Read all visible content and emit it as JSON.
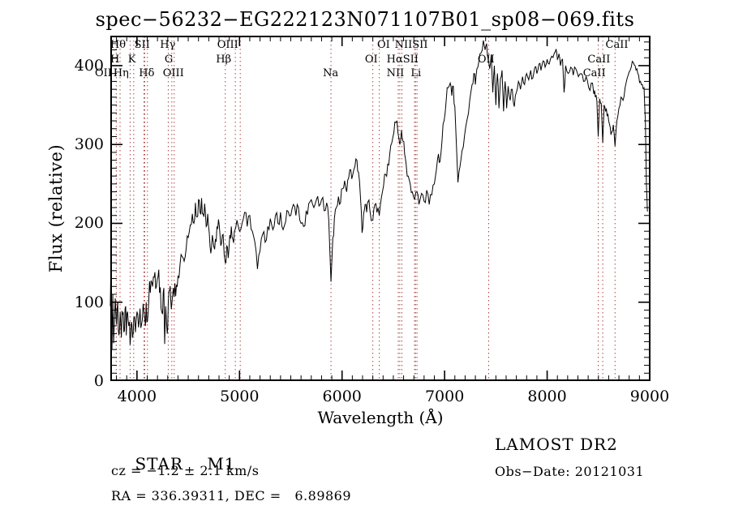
{
  "title": "spec−56232−EG222123N071107B01_sp08−069.fits",
  "footer": {
    "object_class": "STAR",
    "subclass": "M1",
    "survey": "LAMOST DR2",
    "cz": "cz = −1.2 ± 2.1 km/s",
    "obs_date": "Obs−Date: 20121031",
    "ra_dec": "RA = 336.39311, DEC =   6.89869"
  },
  "chart_data": {
    "type": "line",
    "title": "spec−56232−EG222123N071107B01_sp08−069.fits",
    "xlabel": "Wavelength (Å)",
    "ylabel": "Flux (relative)",
    "xlim": [
      3740,
      9008
    ],
    "ylim": [
      0,
      438
    ],
    "x_ticks": [
      4000,
      5000,
      6000,
      7000,
      8000,
      9000
    ],
    "y_ticks": [
      0,
      100,
      200,
      300,
      400
    ],
    "x_minor_step": 100,
    "y_minor_step": 10,
    "grid": false,
    "legend": "none",
    "line_color": "#000000",
    "marker_color": "#aa4444",
    "spectral_line_markers": [
      {
        "label": "OII",
        "wl": 3744
      },
      {
        "label": "Hθ",
        "wl": 3798
      },
      {
        "label": "Hη",
        "wl": 3835
      },
      {
        "label": "K",
        "wl": 3933
      },
      {
        "label": "H",
        "wl": 3968
      },
      {
        "label": "SII",
        "wl": 4068
      },
      {
        "label": "SII",
        "wl": 4076
      },
      {
        "label": "Hδ",
        "wl": 4102
      },
      {
        "label": "G",
        "wl": 4305
      },
      {
        "label": "Hγ",
        "wl": 4340
      },
      {
        "label": "OIII",
        "wl": 4363
      },
      {
        "label": "Hβ",
        "wl": 4861
      },
      {
        "label": "OIII",
        "wl": 4959
      },
      {
        "label": "OIII",
        "wl": 5007
      },
      {
        "label": "Na",
        "wl": 5892
      },
      {
        "label": "OI",
        "wl": 6300
      },
      {
        "label": "OI",
        "wl": 6363
      },
      {
        "label": "NII",
        "wl": 6548
      },
      {
        "label": "Hα",
        "wl": 6563
      },
      {
        "label": "NII",
        "wl": 6583
      },
      {
        "label": "Li",
        "wl": 6707
      },
      {
        "label": "SII",
        "wl": 6716
      },
      {
        "label": "SII",
        "wl": 6731
      },
      {
        "label": "OII",
        "wl": 7430
      },
      {
        "label": "CaII",
        "wl": 8498
      },
      {
        "label": "CaII",
        "wl": 8542
      },
      {
        "label": "CaII",
        "wl": 8662
      }
    ],
    "line_labels": [
      {
        "text": "Hθ",
        "row": 1,
        "wl": 3815
      },
      {
        "text": "SII",
        "row": 1,
        "wl": 4050
      },
      {
        "text": "Hγ",
        "row": 1,
        "wl": 4300
      },
      {
        "text": "OIII",
        "row": 1,
        "wl": 4885
      },
      {
        "text": "OI",
        "row": 1,
        "wl": 6405
      },
      {
        "text": "NIISII",
        "row": 1,
        "wl": 6675
      },
      {
        "text": "CaII",
        "row": 1,
        "wl": 8680
      },
      {
        "text": "H",
        "row": 2,
        "wl": 3785
      },
      {
        "text": "K",
        "row": 2,
        "wl": 3950
      },
      {
        "text": "G",
        "row": 2,
        "wl": 4310
      },
      {
        "text": "Hβ",
        "row": 2,
        "wl": 4845
      },
      {
        "text": "OI",
        "row": 2,
        "wl": 6285
      },
      {
        "text": "HαSII",
        "row": 2,
        "wl": 6590
      },
      {
        "text": "OII",
        "row": 2,
        "wl": 7405
      },
      {
        "text": "CaII",
        "row": 2,
        "wl": 8505
      },
      {
        "text": "OII",
        "row": 3,
        "wl": 3672
      },
      {
        "text": "Hη",
        "row": 3,
        "wl": 3845
      },
      {
        "text": "Hδ",
        "row": 3,
        "wl": 4095
      },
      {
        "text": "OIII",
        "row": 3,
        "wl": 4355
      },
      {
        "text": "Na",
        "row": 3,
        "wl": 5888
      },
      {
        "text": "NII",
        "row": 3,
        "wl": 6520
      },
      {
        "text": "Li",
        "row": 3,
        "wl": 6720
      },
      {
        "text": "CaII",
        "row": 3,
        "wl": 8460
      }
    ],
    "series": [
      [
        3740,
        95
      ],
      [
        3748,
        130
      ],
      [
        3756,
        40
      ],
      [
        3764,
        110
      ],
      [
        3772,
        48
      ],
      [
        3788,
        105
      ],
      [
        3800,
        72
      ],
      [
        3812,
        100
      ],
      [
        3824,
        58
      ],
      [
        3836,
        88
      ],
      [
        3848,
        55
      ],
      [
        3860,
        85
      ],
      [
        3872,
        62
      ],
      [
        3884,
        92
      ],
      [
        3896,
        58
      ],
      [
        3908,
        88
      ],
      [
        3920,
        70
      ],
      [
        3933,
        46
      ],
      [
        3945,
        75
      ],
      [
        3957,
        55
      ],
      [
        3969,
        80
      ],
      [
        3985,
        62
      ],
      [
        4000,
        88
      ],
      [
        4015,
        68
      ],
      [
        4030,
        92
      ],
      [
        4045,
        72
      ],
      [
        4060,
        98
      ],
      [
        4075,
        80
      ],
      [
        4090,
        100
      ],
      [
        4102,
        76
      ],
      [
        4115,
        102
      ],
      [
        4130,
        112
      ],
      [
        4145,
        125
      ],
      [
        4160,
        132
      ],
      [
        4175,
        138
      ],
      [
        4190,
        120
      ],
      [
        4205,
        132
      ],
      [
        4220,
        112
      ],
      [
        4235,
        92
      ],
      [
        4250,
        85
      ],
      [
        4262,
        118
      ],
      [
        4270,
        47
      ],
      [
        4280,
        95
      ],
      [
        4295,
        60
      ],
      [
        4305,
        98
      ],
      [
        4318,
        115
      ],
      [
        4330,
        102
      ],
      [
        4340,
        98
      ],
      [
        4355,
        118
      ],
      [
        4370,
        124
      ],
      [
        4385,
        122
      ],
      [
        4400,
        133
      ],
      [
        4420,
        148
      ],
      [
        4440,
        158
      ],
      [
        4460,
        152
      ],
      [
        4480,
        168
      ],
      [
        4500,
        182
      ],
      [
        4520,
        198
      ],
      [
        4540,
        212
      ],
      [
        4555,
        200
      ],
      [
        4570,
        226
      ],
      [
        4585,
        208
      ],
      [
        4600,
        230
      ],
      [
        4615,
        214
      ],
      [
        4630,
        232
      ],
      [
        4645,
        212
      ],
      [
        4660,
        225
      ],
      [
        4675,
        196
      ],
      [
        4690,
        212
      ],
      [
        4705,
        188
      ],
      [
        4720,
        162
      ],
      [
        4735,
        185
      ],
      [
        4750,
        170
      ],
      [
        4765,
        180
      ],
      [
        4780,
        196
      ],
      [
        4795,
        205
      ],
      [
        4810,
        185
      ],
      [
        4825,
        175
      ],
      [
        4840,
        186
      ],
      [
        4861,
        150
      ],
      [
        4875,
        172
      ],
      [
        4890,
        156
      ],
      [
        4905,
        185
      ],
      [
        4920,
        196
      ],
      [
        4935,
        180
      ],
      [
        4950,
        190
      ],
      [
        4975,
        204
      ],
      [
        5000,
        190
      ],
      [
        5025,
        200
      ],
      [
        5050,
        214
      ],
      [
        5075,
        196
      ],
      [
        5100,
        210
      ],
      [
        5125,
        190
      ],
      [
        5150,
        176
      ],
      [
        5175,
        142
      ],
      [
        5200,
        165
      ],
      [
        5225,
        186
      ],
      [
        5250,
        176
      ],
      [
        5275,
        196
      ],
      [
        5300,
        206
      ],
      [
        5325,
        192
      ],
      [
        5350,
        210
      ],
      [
        5375,
        200
      ],
      [
        5400,
        214
      ],
      [
        5425,
        192
      ],
      [
        5450,
        202
      ],
      [
        5475,
        215
      ],
      [
        5500,
        210
      ],
      [
        5525,
        224
      ],
      [
        5550,
        210
      ],
      [
        5575,
        220
      ],
      [
        5600,
        200
      ],
      [
        5625,
        196
      ],
      [
        5650,
        216
      ],
      [
        5675,
        225
      ],
      [
        5700,
        230
      ],
      [
        5725,
        220
      ],
      [
        5750,
        230
      ],
      [
        5775,
        222
      ],
      [
        5800,
        230
      ],
      [
        5825,
        216
      ],
      [
        5850,
        226
      ],
      [
        5870,
        205
      ],
      [
        5892,
        126
      ],
      [
        5910,
        182
      ],
      [
        5925,
        206
      ],
      [
        5945,
        220
      ],
      [
        5965,
        234
      ],
      [
        5985,
        226
      ],
      [
        6005,
        244
      ],
      [
        6025,
        254
      ],
      [
        6045,
        240
      ],
      [
        6065,
        258
      ],
      [
        6085,
        268
      ],
      [
        6105,
        262
      ],
      [
        6125,
        272
      ],
      [
        6145,
        280
      ],
      [
        6160,
        265
      ],
      [
        6180,
        232
      ],
      [
        6195,
        188
      ],
      [
        6210,
        212
      ],
      [
        6225,
        224
      ],
      [
        6240,
        214
      ],
      [
        6255,
        228
      ],
      [
        6270,
        218
      ],
      [
        6300,
        204
      ],
      [
        6320,
        224
      ],
      [
        6340,
        214
      ],
      [
        6363,
        210
      ],
      [
        6385,
        234
      ],
      [
        6405,
        248
      ],
      [
        6425,
        262
      ],
      [
        6445,
        275
      ],
      [
        6465,
        288
      ],
      [
        6485,
        302
      ],
      [
        6505,
        315
      ],
      [
        6525,
        328
      ],
      [
        6545,
        315
      ],
      [
        6563,
        300
      ],
      [
        6580,
        318
      ],
      [
        6595,
        304
      ],
      [
        6610,
        288
      ],
      [
        6625,
        275
      ],
      [
        6645,
        260
      ],
      [
        6665,
        250
      ],
      [
        6685,
        240
      ],
      [
        6707,
        230
      ],
      [
        6730,
        240
      ],
      [
        6750,
        224
      ],
      [
        6775,
        238
      ],
      [
        6800,
        228
      ],
      [
        6825,
        242
      ],
      [
        6850,
        224
      ],
      [
        6875,
        236
      ],
      [
        6900,
        250
      ],
      [
        6920,
        268
      ],
      [
        6940,
        288
      ],
      [
        6955,
        278
      ],
      [
        6975,
        305
      ],
      [
        6995,
        330
      ],
      [
        7015,
        355
      ],
      [
        7035,
        372
      ],
      [
        7055,
        378
      ],
      [
        7070,
        362
      ],
      [
        7085,
        374
      ],
      [
        7100,
        348
      ],
      [
        7115,
        300
      ],
      [
        7130,
        252
      ],
      [
        7150,
        272
      ],
      [
        7170,
        292
      ],
      [
        7195,
        312
      ],
      [
        7220,
        332
      ],
      [
        7245,
        356
      ],
      [
        7268,
        376
      ],
      [
        7285,
        390
      ],
      [
        7300,
        376
      ],
      [
        7315,
        396
      ],
      [
        7335,
        406
      ],
      [
        7355,
        416
      ],
      [
        7378,
        432
      ],
      [
        7395,
        420
      ],
      [
        7410,
        428
      ],
      [
        7425,
        408
      ],
      [
        7440,
        396
      ],
      [
        7455,
        414
      ],
      [
        7470,
        366
      ],
      [
        7485,
        400
      ],
      [
        7500,
        350
      ],
      [
        7515,
        390
      ],
      [
        7530,
        346
      ],
      [
        7545,
        384
      ],
      [
        7560,
        394
      ],
      [
        7575,
        342
      ],
      [
        7590,
        380
      ],
      [
        7605,
        346
      ],
      [
        7620,
        374
      ],
      [
        7640,
        356
      ],
      [
        7660,
        370
      ],
      [
        7680,
        348
      ],
      [
        7700,
        366
      ],
      [
        7720,
        380
      ],
      [
        7740,
        370
      ],
      [
        7760,
        386
      ],
      [
        7780,
        376
      ],
      [
        7800,
        390
      ],
      [
        7820,
        382
      ],
      [
        7840,
        394
      ],
      [
        7860,
        384
      ],
      [
        7880,
        398
      ],
      [
        7900,
        390
      ],
      [
        7920,
        402
      ],
      [
        7940,
        394
      ],
      [
        7960,
        406
      ],
      [
        7980,
        398
      ],
      [
        8000,
        408
      ],
      [
        8020,
        402
      ],
      [
        8045,
        412
      ],
      [
        8070,
        416
      ],
      [
        8087,
        421
      ],
      [
        8100,
        408
      ],
      [
        8115,
        415
      ],
      [
        8130,
        400
      ],
      [
        8150,
        408
      ],
      [
        8165,
        366
      ],
      [
        8180,
        400
      ],
      [
        8205,
        390
      ],
      [
        8230,
        398
      ],
      [
        8255,
        388
      ],
      [
        8280,
        396
      ],
      [
        8305,
        386
      ],
      [
        8330,
        390
      ],
      [
        8355,
        380
      ],
      [
        8380,
        386
      ],
      [
        8405,
        372
      ],
      [
        8430,
        378
      ],
      [
        8455,
        364
      ],
      [
        8470,
        360
      ],
      [
        8485,
        355
      ],
      [
        8498,
        310
      ],
      [
        8512,
        358
      ],
      [
        8528,
        352
      ],
      [
        8542,
        302
      ],
      [
        8556,
        350
      ],
      [
        8570,
        342
      ],
      [
        8585,
        336
      ],
      [
        8600,
        330
      ],
      [
        8615,
        322
      ],
      [
        8630,
        316
      ],
      [
        8645,
        325
      ],
      [
        8662,
        298
      ],
      [
        8680,
        330
      ],
      [
        8700,
        346
      ],
      [
        8720,
        360
      ],
      [
        8740,
        356
      ],
      [
        8760,
        372
      ],
      [
        8780,
        384
      ],
      [
        8800,
        392
      ],
      [
        8820,
        398
      ],
      [
        8840,
        404
      ],
      [
        8858,
        400
      ],
      [
        8875,
        396
      ],
      [
        8892,
        388
      ],
      [
        8910,
        380
      ],
      [
        8928,
        376
      ],
      [
        8945,
        372
      ],
      [
        8958,
        330
      ],
      [
        8968,
        250
      ],
      [
        8978,
        215
      ]
    ]
  }
}
